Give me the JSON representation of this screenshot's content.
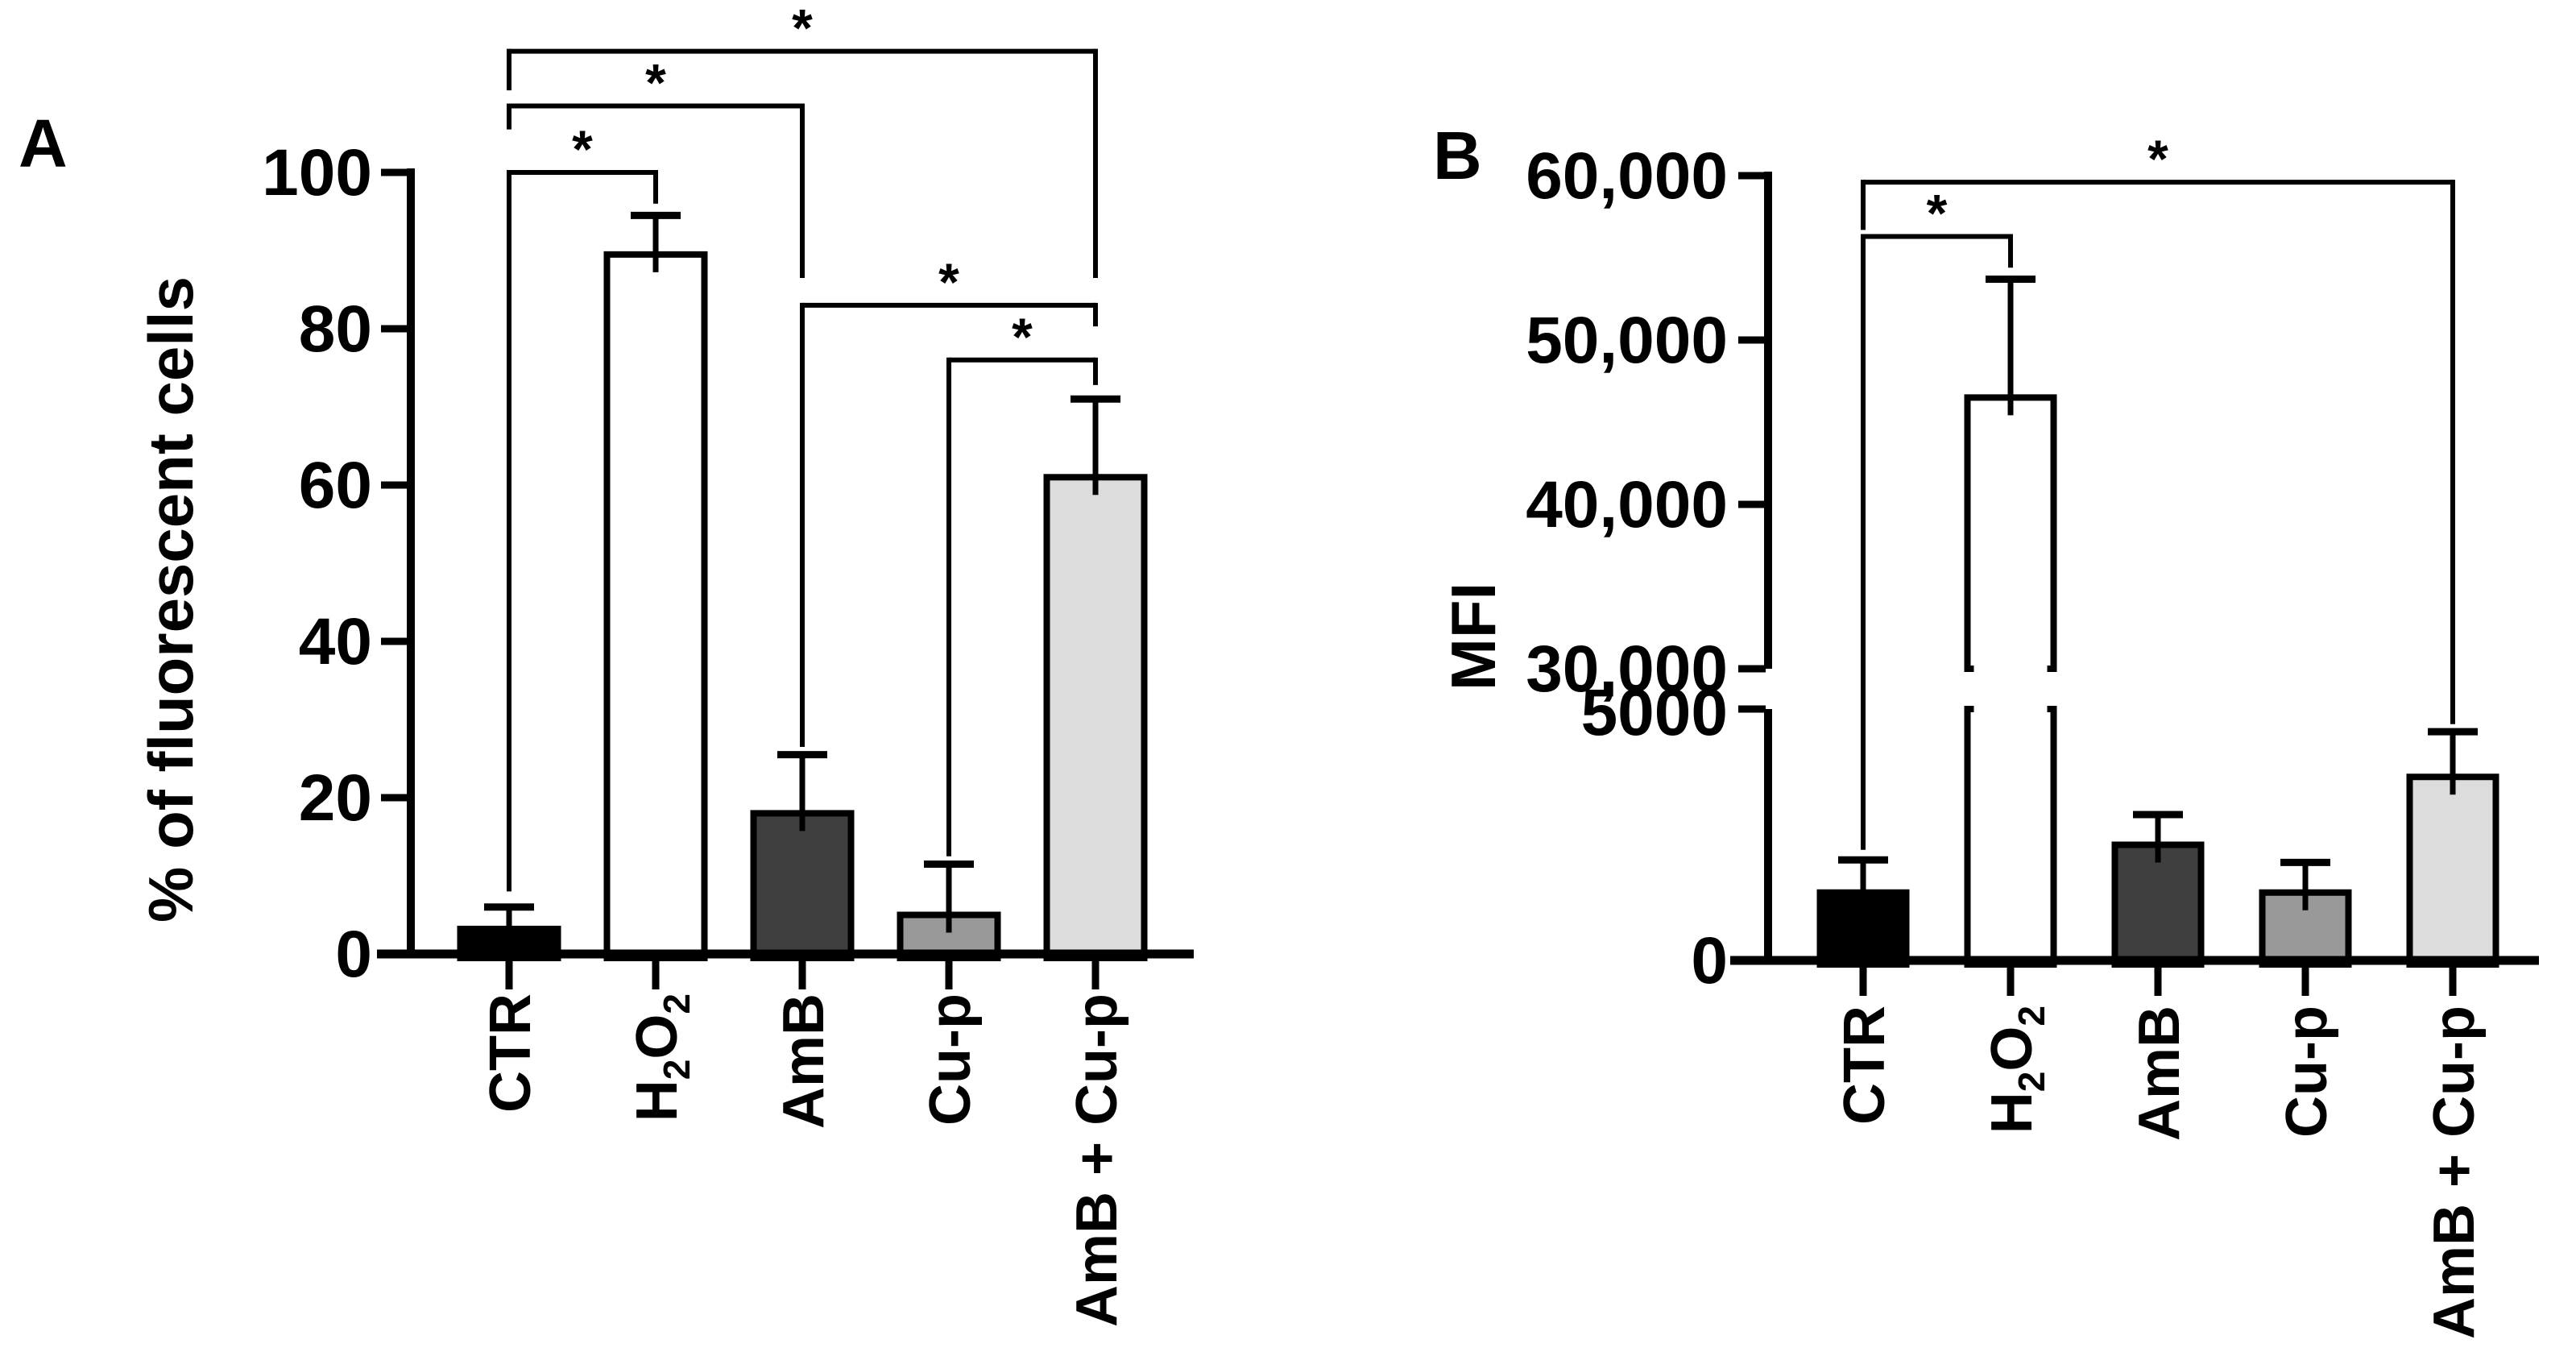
{
  "figure": {
    "background": "#ffffff"
  },
  "chart_data": [
    {
      "type": "bar",
      "panel_label": "A",
      "title": "",
      "xlabel": "",
      "ylabel": "% of fluorescent cells",
      "ylim": [
        0,
        100
      ],
      "grid": false,
      "legend": null,
      "yticks": [
        0,
        20,
        40,
        60,
        80,
        100
      ],
      "ytick_labels": [
        "0",
        "20",
        "40",
        "60",
        "80",
        "100"
      ],
      "categories": [
        "CTR",
        "H2O2",
        "AmB",
        "Cu-p",
        "AmB + Cu-p"
      ],
      "category_display": [
        [
          {
            "t": "CTR"
          }
        ],
        [
          {
            "t": "H"
          },
          {
            "t": "2",
            "sub": true
          },
          {
            "t": "O"
          },
          {
            "t": "2",
            "sub": true
          }
        ],
        [
          {
            "t": "AmB"
          }
        ],
        [
          {
            "t": "Cu-p"
          }
        ],
        [
          {
            "t": "AmB + Cu-p"
          }
        ]
      ],
      "values": [
        3.2,
        89.5,
        18,
        5,
        61
      ],
      "errors_top": [
        6,
        94.5,
        25.5,
        11.5,
        71
      ],
      "bar_fills": [
        "#000000",
        "#ffffff",
        "#3f3f3f",
        "#999999",
        "#dcdcdc"
      ],
      "bar_border": "#000000",
      "significance": [
        {
          "group1": "CTR",
          "group2": "H2O2",
          "marker": "*",
          "level": 100,
          "drop1_to": 8,
          "drop2_to": 96
        },
        {
          "group1": "CTR",
          "group2": "AmB",
          "marker": "*",
          "level": 108.5,
          "drop1_to": 105.5,
          "drop2_to": 86.5
        },
        {
          "group1": "CTR",
          "group2": "AmB + Cu-p",
          "marker": "*",
          "level": 115.5,
          "drop1_to": 110.5,
          "drop2_to": 86.5
        },
        {
          "group1": "AmB",
          "group2": "AmB + Cu-p",
          "marker": "*",
          "level": 83,
          "drop1_to": 26.5,
          "drop2_to": 80.3
        },
        {
          "group1": "Cu-p",
          "group2": "AmB + Cu-p",
          "marker": "*",
          "level": 76,
          "drop1_to": 12.5,
          "drop2_to": 72.8
        }
      ]
    },
    {
      "type": "bar",
      "panel_label": "B",
      "title": "",
      "xlabel": "",
      "ylabel": "MFI",
      "grid": false,
      "legend": null,
      "axis_break": {
        "lower_max": 5000,
        "upper_min": 30000
      },
      "yticks_lower": [
        0,
        5000
      ],
      "ytick_labels_lower": [
        "0",
        "5000"
      ],
      "yticks_upper": [
        30000,
        40000,
        50000,
        60000
      ],
      "ytick_labels_upper": [
        "30,000",
        "40,000",
        "50,000",
        "60,000"
      ],
      "categories": [
        "CTR",
        "H2O2",
        "AmB",
        "Cu-p",
        "AmB + Cu-p"
      ],
      "category_display": [
        [
          {
            "t": "CTR"
          }
        ],
        [
          {
            "t": "H"
          },
          {
            "t": "2",
            "sub": true
          },
          {
            "t": "O"
          },
          {
            "t": "2",
            "sub": true
          }
        ],
        [
          {
            "t": "AmB"
          }
        ],
        [
          {
            "t": "Cu-p"
          }
        ],
        [
          {
            "t": "AmB + Cu-p"
          }
        ]
      ],
      "values": [
        1350,
        46500,
        2300,
        1350,
        3650
      ],
      "errors_top": [
        2000,
        53700,
        2900,
        1950,
        4550
      ],
      "bar_fills": [
        "#000000",
        "#ffffff",
        "#3f3f3f",
        "#999999",
        "#dcdcdc"
      ],
      "bar_border": "#000000",
      "significance": [
        {
          "group1": "CTR",
          "group2": "H2O2",
          "marker": "*",
          "level": 56300,
          "drop1_to": 2200,
          "drop2_to": 54400
        },
        {
          "group1": "CTR",
          "group2": "AmB + Cu-p",
          "marker": "*",
          "level": 59600,
          "drop1_to": 56700,
          "drop2_to": 4700
        }
      ]
    }
  ]
}
